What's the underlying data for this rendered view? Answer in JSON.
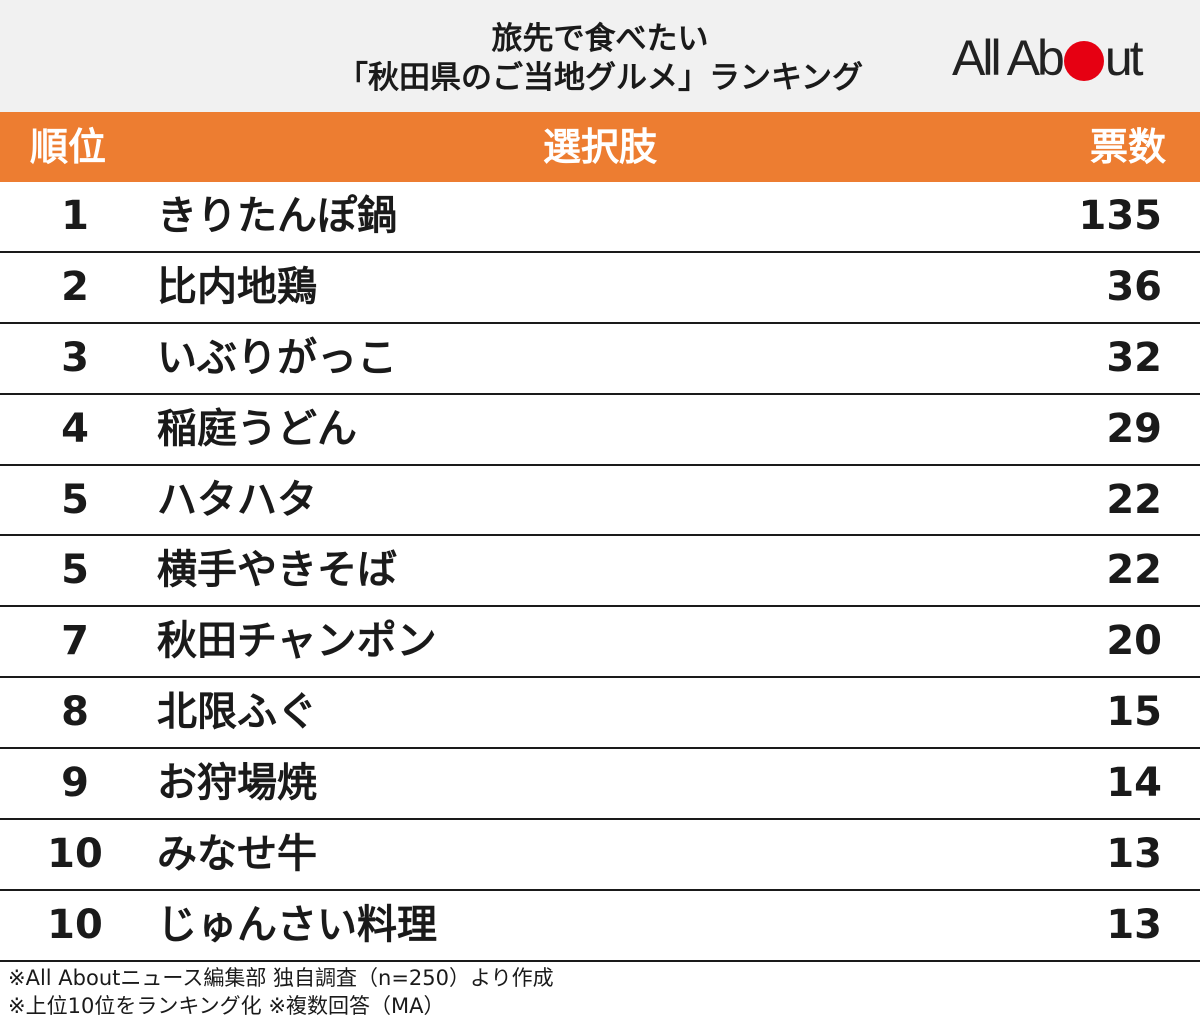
{
  "header": {
    "title_line1": "旅先で食べたい",
    "title_line2": "「秋田県のご当地グルメ」ランキング",
    "logo_left": "All Ab",
    "logo_right": "ut",
    "logo_dot_color": "#e60012"
  },
  "columns": {
    "rank": "順位",
    "choice": "選択肢",
    "votes": "票数"
  },
  "chart_data": {
    "type": "table",
    "columns": [
      "順位",
      "選択肢",
      "票数"
    ],
    "rows": [
      {
        "rank": "1",
        "name": "きりたんぽ鍋",
        "votes": "135"
      },
      {
        "rank": "2",
        "name": "比内地鶏",
        "votes": "36"
      },
      {
        "rank": "3",
        "name": "いぶりがっこ",
        "votes": "32"
      },
      {
        "rank": "4",
        "name": "稲庭うどん",
        "votes": "29"
      },
      {
        "rank": "5",
        "name": "ハタハタ",
        "votes": "22"
      },
      {
        "rank": "5",
        "name": "横手やきそば",
        "votes": "22"
      },
      {
        "rank": "7",
        "name": "秋田チャンポン",
        "votes": "20"
      },
      {
        "rank": "8",
        "name": "北限ふぐ",
        "votes": "15"
      },
      {
        "rank": "9",
        "name": "お狩場焼",
        "votes": "14"
      },
      {
        "rank": "10",
        "name": "みなせ牛",
        "votes": "13"
      },
      {
        "rank": "10",
        "name": "じゅんさい料理",
        "votes": "13"
      }
    ]
  },
  "footnotes": {
    "line1": "※All Aboutニュース編集部 独自調査（n=250）より作成",
    "line2": "※上位10位をランキング化 ※複数回答（MA）"
  },
  "colors": {
    "header_bg": "#ed7d31",
    "title_bg": "#f1f1f1"
  }
}
